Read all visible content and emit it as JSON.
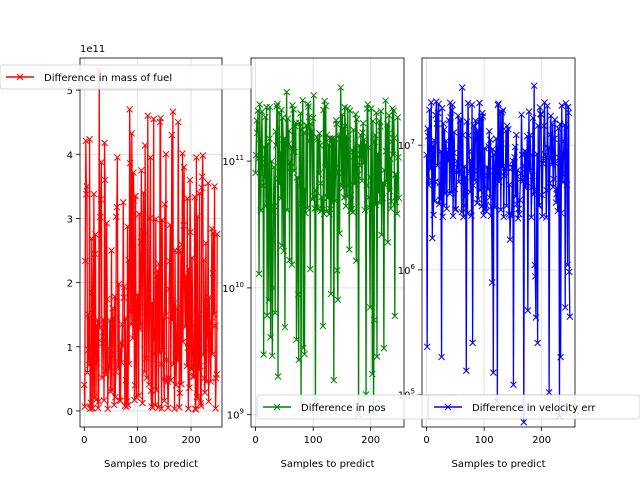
{
  "chart_data": [
    {
      "type": "line",
      "marker": "x",
      "color": "#ff0000",
      "xlabel": "Samples to predict",
      "ylabel": "",
      "xlim": [
        -8,
        258
      ],
      "ylim": [
        -25000000000.0,
        550000000000.0
      ],
      "yscale": "linear",
      "x_ticks": [
        0,
        100,
        200
      ],
      "y_ticks": [
        0,
        100000000000.0,
        200000000000.0,
        300000000000.0,
        400000000000.0,
        500000000000.0
      ],
      "y_tick_labels": [
        "0",
        "1",
        "2",
        "3",
        "4",
        "5"
      ],
      "offset_text": "1e11",
      "grid": true,
      "legend": {
        "label": "Difference in mass of fuel",
        "placement": "upper-left"
      },
      "n_points": 250,
      "value_range": [
        2000000000.0,
        550000000000.0
      ],
      "sample_values": [
        350000000000.0,
        100000000000.0,
        530000000000.0,
        360000000000.0,
        250000000000.0,
        395000000000.0,
        325000000000.0,
        470000000000.0,
        335000000000.0,
        375000000000.0,
        460000000000.0,
        455000000000.0,
        450000000000.0,
        400000000000.0,
        430000000000.0,
        450000000000.0,
        380000000000.0,
        360000000000.0,
        395000000000.0,
        365000000000.0,
        355000000000.0,
        350000000000.0
      ]
    },
    {
      "type": "line",
      "marker": "x",
      "color": "#008000",
      "xlabel": "Samples to predict",
      "ylabel": "",
      "xlim": [
        -8,
        258
      ],
      "ylim": [
        800000000.0,
        650000000000.0
      ],
      "yscale": "log",
      "x_ticks": [
        0,
        100,
        200
      ],
      "y_ticks": [
        1000000000.0,
        10000000000.0,
        100000000000.0
      ],
      "y_tick_labels": [
        "10^9",
        "10^10",
        "10^11"
      ],
      "grid": true,
      "legend": {
        "label": "Difference in pos",
        "placement": "lower-left"
      },
      "n_points": 250,
      "value_range": [
        1000000000.0,
        400000000000.0
      ],
      "sample_values": [
        280000000000.0,
        8000000000.0,
        2000000000.0,
        350000000000.0,
        200000000000.0,
        3000000000.0,
        330000000000.0,
        5000000000.0,
        150000000000.0,
        380000000000.0,
        250000000000.0,
        1000000000.0,
        280000000000.0,
        240000000000.0,
        300000000000.0,
        6000000000.0
      ]
    },
    {
      "type": "line",
      "marker": "x",
      "color": "#0000ff",
      "xlabel": "Samples to predict",
      "ylabel": "",
      "xlim": [
        -8,
        258
      ],
      "ylim": [
        55000.0,
        50000000.0
      ],
      "yscale": "log",
      "x_ticks": [
        0,
        100,
        200
      ],
      "y_ticks": [
        100000.0,
        1000000.0,
        10000000.0
      ],
      "y_tick_labels": [
        "10^5",
        "10^6",
        "10^7"
      ],
      "grid": true,
      "legend": {
        "label": "Difference in velocity err",
        "placement": "lower-left"
      },
      "n_points": 250,
      "value_range": [
        60000.0,
        30000000.0
      ],
      "sample_values": [
        22000000.0,
        200000.0,
        19000000.0,
        29000000.0,
        260000.0,
        17000000.0,
        150000.0,
        19000000.0,
        120000.0,
        60000.0,
        30000000.0,
        22000000.0,
        16000000.0,
        500000.0
      ]
    }
  ]
}
